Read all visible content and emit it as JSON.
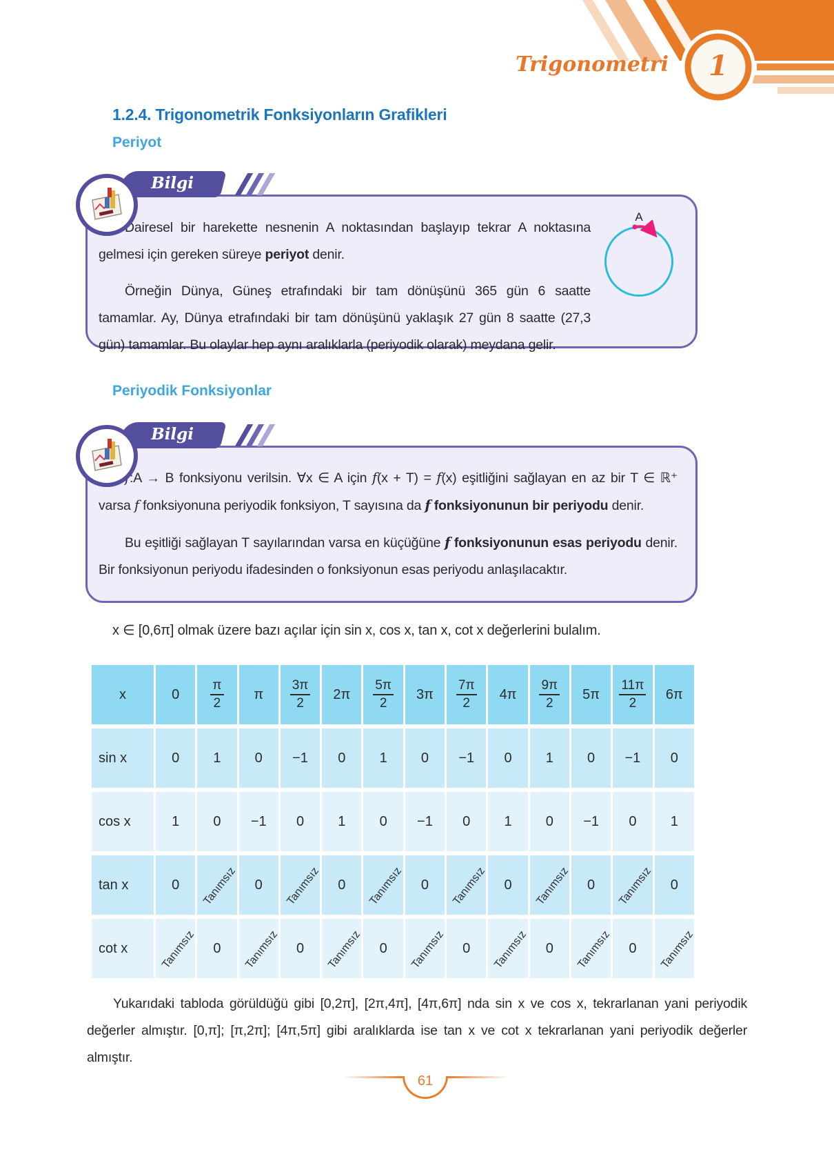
{
  "page": {
    "number": "61"
  },
  "header": {
    "chapter": "Trigonometri",
    "number": "1"
  },
  "section_title": "1.2.4. Trigonometrik Fonksiyonların Grafikleri",
  "subtitle_1": "Periyot",
  "subtitle_2": "Periyodik Fonksiyonlar",
  "bilgi_label": "Bilgi",
  "info1": {
    "p1": [
      {
        "t": "Dairesel bir harekette nesnenin A noktasından başlayıp tekrar A noktasına gelmesi için gereken süreye ",
        "s": "n"
      },
      {
        "t": "periyot",
        "s": "b"
      },
      {
        "t": " denir.",
        "s": "n"
      }
    ],
    "p2": [
      {
        "t": "Örneğin Dünya, Güneş etrafındaki bir tam dönüşünü 365 gün 6 saatte tamamlar. Ay, Dünya etrafındaki bir tam dönüşünü yaklaşık 27 gün 8 saatte (27,3 gün) tamamlar. Bu olaylar hep aynı aralıklarla (periyodik olarak) meydana gelir.",
        "s": "n"
      }
    ],
    "diagram_point": "A"
  },
  "info2": {
    "p1": [
      {
        "t": "f",
        "s": "i"
      },
      {
        "t": ":A → B fonksiyonu verilsin. ∀x ∈ A için ",
        "s": "n"
      },
      {
        "t": "f",
        "s": "i"
      },
      {
        "t": "(x + T) = ",
        "s": "n"
      },
      {
        "t": "f",
        "s": "i"
      },
      {
        "t": "(x) eşitliğini sağlayan en az bir T ∈ ℝ⁺ varsa ",
        "s": "n"
      },
      {
        "t": "f",
        "s": "i"
      },
      {
        "t": " fonksiyonuna periyodik fonksiyon, T sayısına da ",
        "s": "n"
      },
      {
        "t": "f",
        "s": "bi"
      },
      {
        "t": " fonksiyonunun bir periyodu",
        "s": "b"
      },
      {
        "t": " denir.",
        "s": "n"
      }
    ],
    "p2": [
      {
        "t": "Bu eşitliği sağlayan T sayılarından varsa en küçüğüne ",
        "s": "n"
      },
      {
        "t": "f",
        "s": "bi"
      },
      {
        "t": " fonksiyonunun esas periyodu",
        "s": "b"
      },
      {
        "t": " denir. Bir fonksiyonun periyodu ifadesinden o fonksiyonun esas periyodu anlaşılacaktır.",
        "s": "n"
      }
    ]
  },
  "table_intro": "x ∈ [0,6π] olmak üzere bazı açılar için sin x, cos x, tan x, cot x değerlerini bulalım.",
  "table": {
    "header": [
      "x",
      "0",
      "π/2",
      "π",
      "3π/2",
      "2π",
      "5π/2",
      "3π",
      "7π/2",
      "4π",
      "9π/2",
      "5π",
      "11π/2",
      "6π"
    ],
    "undefined_label": "Tanımsız",
    "rows": [
      {
        "label": "sin x",
        "values": [
          "0",
          "1",
          "0",
          "−1",
          "0",
          "1",
          "0",
          "−1",
          "0",
          "1",
          "0",
          "−1",
          "0"
        ]
      },
      {
        "label": "cos x",
        "values": [
          "1",
          "0",
          "−1",
          "0",
          "1",
          "0",
          "−1",
          "0",
          "1",
          "0",
          "−1",
          "0",
          "1"
        ]
      },
      {
        "label": "tan x",
        "values": [
          "0",
          "Tanımsız",
          "0",
          "Tanımsız",
          "0",
          "Tanımsız",
          "0",
          "Tanımsız",
          "0",
          "Tanımsız",
          "0",
          "Tanımsız",
          "0"
        ]
      },
      {
        "label": "cot x",
        "values": [
          "Tanımsız",
          "0",
          "Tanımsız",
          "0",
          "Tanımsız",
          "0",
          "Tanımsız",
          "0",
          "Tanımsız",
          "0",
          "Tanımsız",
          "0",
          "Tanımsız"
        ]
      }
    ]
  },
  "closing": "Yukarıdaki tabloda görüldüğü gibi [0,2π], [2π,4π], [4π,6π] nda sin x ve cos x, tekrarlanan yani periyodik değerler almıştır. [0,π]; [π,2π]; [4π,5π] gibi aralıklarda ise tan x ve cot x tekrarlanan yani periyodik değerler almıştır.",
  "colors": {
    "accent_orange": "#E87B26",
    "banner_purple": "#534F9E",
    "box_bg": "#EFEDF9",
    "box_border": "#6B66B0",
    "title_blue": "#1B75BB",
    "subtitle_blue": "#3EA6DF",
    "table_header_bg": "#8FD9F2",
    "table_row_a": "#C8E9F8",
    "table_row_b": "#E2F3FB",
    "diagram_circle": "#2ABCDB",
    "diagram_arrow": "#EC1E79"
  }
}
